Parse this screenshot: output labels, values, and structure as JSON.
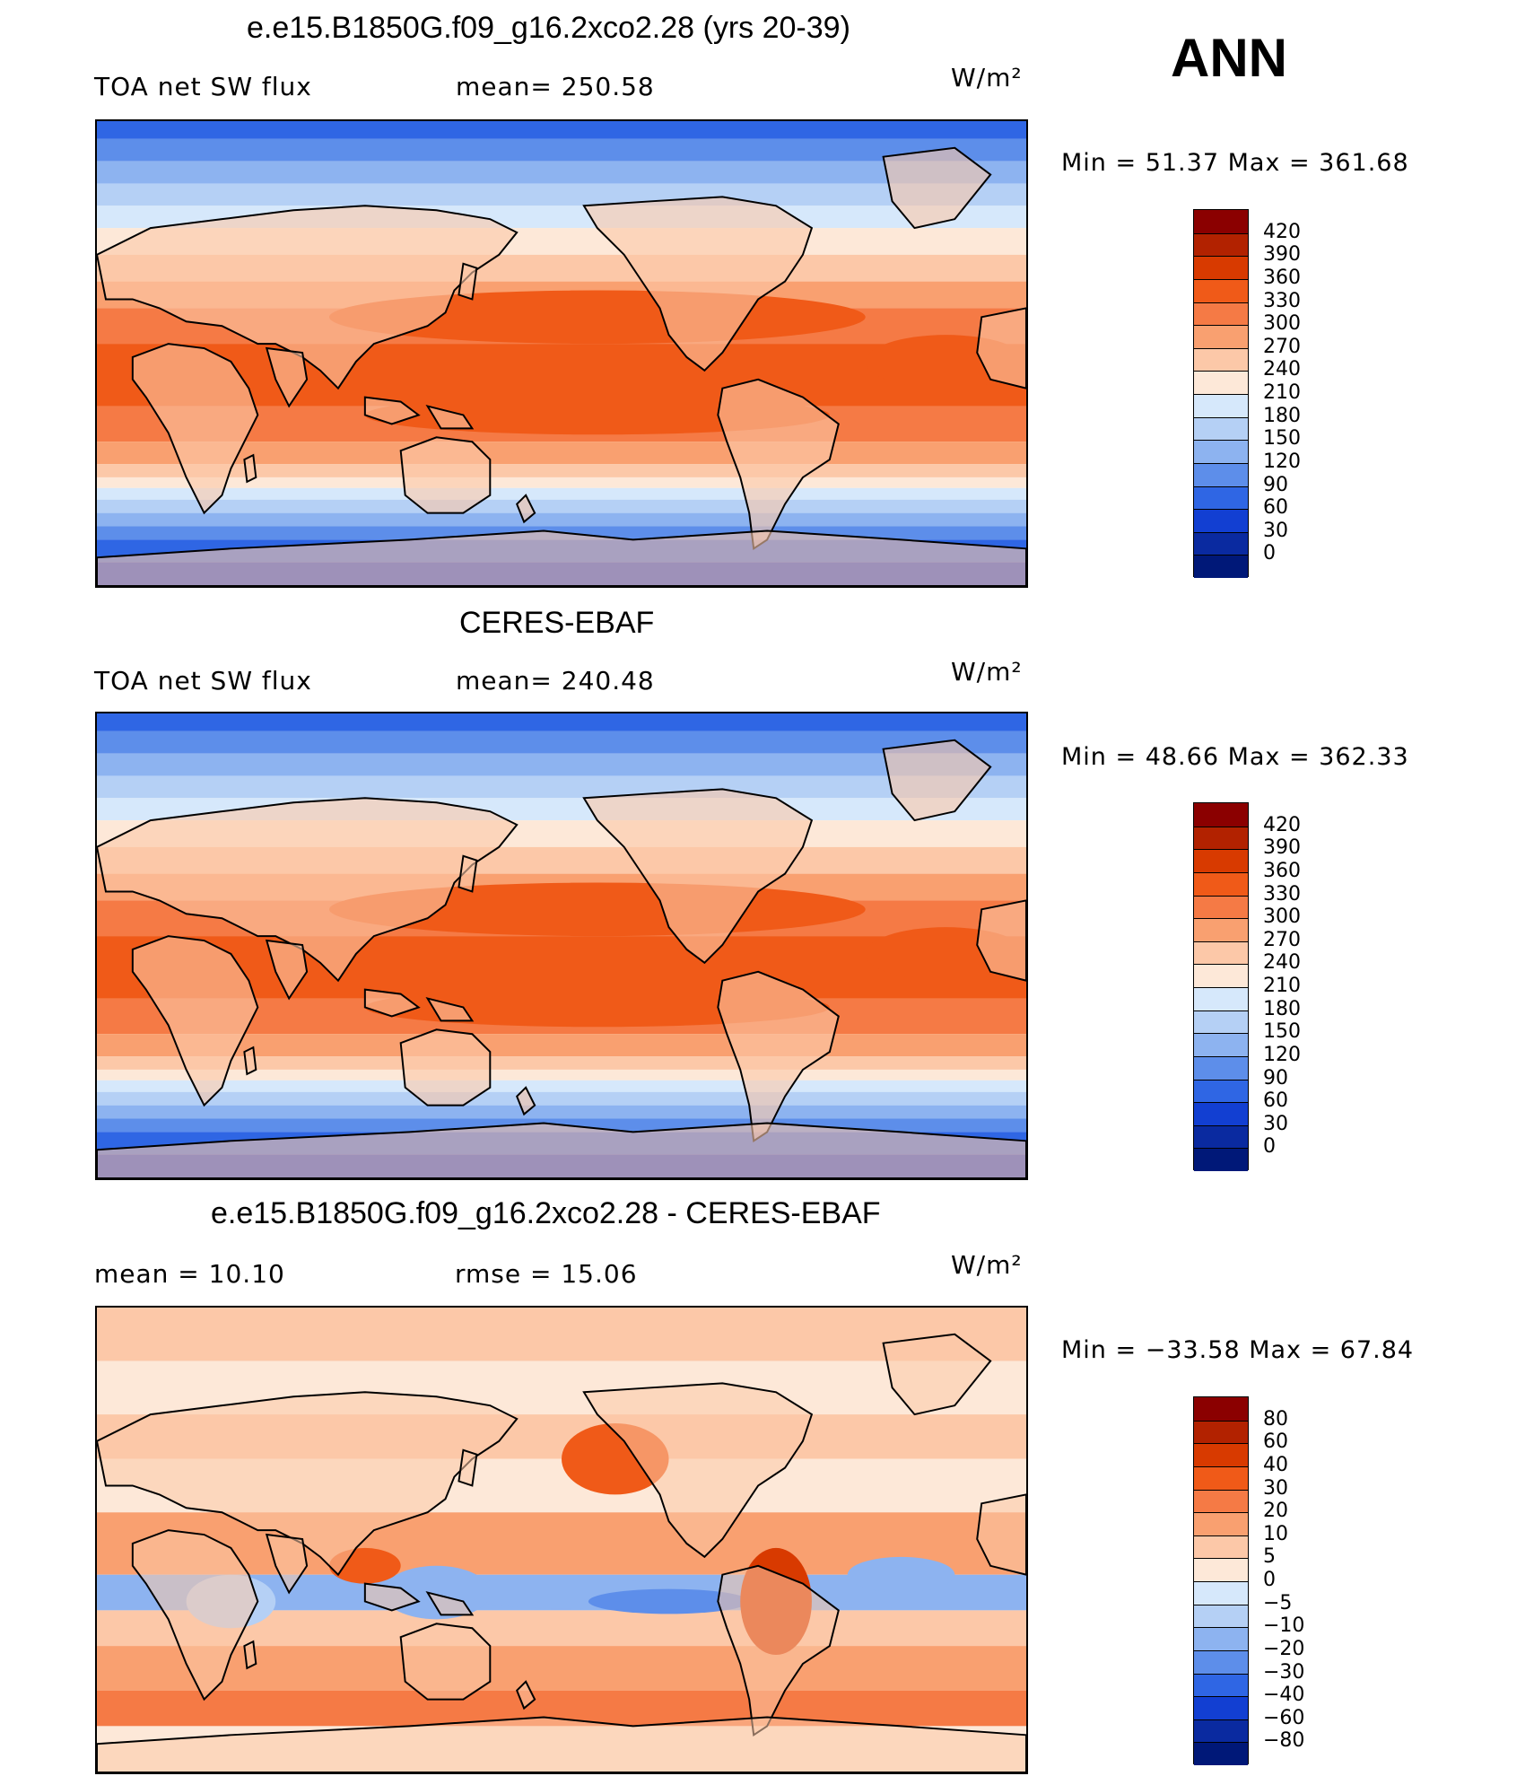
{
  "season": "ANN",
  "panels": [
    {
      "title": "e.e15.B1850G.f09_g16.2xco2.28 (yrs 20-39)",
      "left_label": "TOA net SW flux",
      "mid_label": "mean= 250.58",
      "units": "W/m²",
      "minmax": "Min =   51.37 Max =  361.68",
      "levels": [
        "420",
        "390",
        "360",
        "330",
        "300",
        "270",
        "240",
        "210",
        "180",
        "150",
        "120",
        "90",
        "60",
        "30",
        "0"
      ],
      "colors": [
        "#8b0000",
        "#b22200",
        "#d83a00",
        "#f05a18",
        "#f57a45",
        "#f9a070",
        "#fcc8a8",
        "#fde8d8",
        "#d6e8fb",
        "#b5d0f5",
        "#8db3f0",
        "#5d8eea",
        "#2f66e4",
        "#123fd2",
        "#0a2aa0",
        "#001878"
      ],
      "field": "model"
    },
    {
      "title": "CERES-EBAF",
      "left_label": "TOA net SW flux",
      "mid_label": "mean= 240.48",
      "units": "W/m²",
      "minmax": "Min =   48.66 Max =  362.33",
      "levels": [
        "420",
        "390",
        "360",
        "330",
        "300",
        "270",
        "240",
        "210",
        "180",
        "150",
        "120",
        "90",
        "60",
        "30",
        "0"
      ],
      "colors": [
        "#8b0000",
        "#b22200",
        "#d83a00",
        "#f05a18",
        "#f57a45",
        "#f9a070",
        "#fcc8a8",
        "#fde8d8",
        "#d6e8fb",
        "#b5d0f5",
        "#8db3f0",
        "#5d8eea",
        "#2f66e4",
        "#123fd2",
        "#0a2aa0",
        "#001878"
      ],
      "field": "obs"
    },
    {
      "title": "e.e15.B1850G.f09_g16.2xco2.28 - CERES-EBAF",
      "left_label": "mean =   10.10",
      "mid_label": "rmse =   15.06",
      "units": "W/m²",
      "minmax": "Min = −33.58 Max =   67.84",
      "levels": [
        "80",
        "60",
        "40",
        "30",
        "20",
        "10",
        "5",
        "0",
        "−5",
        "−10",
        "−20",
        "−30",
        "−40",
        "−60",
        "−80"
      ],
      "colors": [
        "#8b0000",
        "#b22200",
        "#d83a00",
        "#f05a18",
        "#f57a45",
        "#f9a070",
        "#fcc8a8",
        "#fde8d8",
        "#d6e8fb",
        "#b5d0f5",
        "#8db3f0",
        "#5d8eea",
        "#2f66e4",
        "#123fd2",
        "#0a2aa0",
        "#001878"
      ],
      "field": "diff"
    }
  ]
}
